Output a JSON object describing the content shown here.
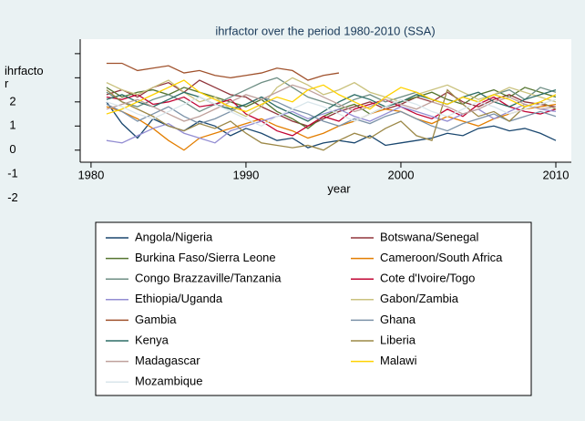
{
  "chart_data": {
    "type": "line",
    "title": "ihrfactor over the period 1980-2010 (SSA)",
    "xlabel": "year",
    "ylabel": "ihrfactor",
    "x": [
      1981,
      1982,
      1983,
      1984,
      1985,
      1986,
      1987,
      1988,
      1989,
      1990,
      1991,
      1992,
      1993,
      1994,
      1995,
      1996,
      1997,
      1998,
      1999,
      2000,
      2001,
      2002,
      2003,
      2004,
      2005,
      2006,
      2007,
      2008,
      2009,
      2010
    ],
    "xlim": [
      1979.3,
      2011
    ],
    "xticks": [
      1980,
      1990,
      2000,
      2010
    ],
    "ylim": [
      -0.5,
      4.6
    ],
    "yticks": [
      {
        "value": -2,
        "label": "-2"
      },
      {
        "value": -1,
        "label": "-1"
      },
      0,
      1,
      2,
      {
        "value": 3,
        "label": null
      },
      {
        "value": 4,
        "label": null
      }
    ],
    "series": [
      {
        "name": "Angola/Nigeria",
        "color": "#1a476f",
        "values": [
          2.0,
          1.1,
          0.5,
          1.3,
          1.0,
          0.8,
          1.2,
          1.0,
          0.6,
          0.9,
          0.7,
          0.4,
          0.5,
          0.1,
          0.3,
          0.4,
          0.3,
          0.6,
          0.2,
          0.3,
          0.4,
          0.5,
          0.7,
          0.6,
          0.9,
          1.0,
          0.8,
          0.9,
          0.7,
          0.4
        ]
      },
      {
        "name": "Botswana/Senegal",
        "color": "#90353b",
        "values": [
          2.3,
          2.5,
          2.2,
          2.6,
          2.8,
          2.4,
          2.9,
          2.6,
          2.3,
          2.2,
          1.8,
          1.5,
          1.2,
          1.0,
          1.3,
          1.6,
          1.8,
          2.0,
          1.7,
          1.9,
          2.2,
          2.0,
          2.4,
          2.0,
          1.8,
          2.1,
          2.3,
          2.0,
          1.9,
          1.8
        ]
      },
      {
        "name": "Burkina Faso/Sierra Leone",
        "color": "#55752f",
        "values": [
          2.6,
          2.2,
          2.4,
          2.5,
          2.3,
          2.6,
          2.4,
          2.2,
          2.0,
          1.8,
          2.1,
          1.6,
          1.3,
          0.9,
          1.4,
          1.7,
          1.9,
          1.5,
          1.8,
          2.0,
          2.2,
          2.4,
          2.1,
          1.9,
          2.3,
          2.5,
          2.2,
          2.6,
          2.4,
          2.2
        ]
      },
      {
        "name": "Cameroon/South Africa",
        "color": "#e37e00",
        "values": [
          1.8,
          1.6,
          1.3,
          0.9,
          0.4,
          0.0,
          0.5,
          0.7,
          0.9,
          1.1,
          1.3,
          1.0,
          0.8,
          0.5,
          0.7,
          1.0,
          1.2,
          1.5,
          1.7,
          1.6,
          1.3,
          1.1,
          1.4,
          1.2,
          1.0,
          1.3,
          1.5,
          1.7,
          1.8,
          1.9
        ]
      },
      {
        "name": "Congo Brazzaville/Tanzania",
        "color": "#6e8e84",
        "values": [
          2.4,
          2.0,
          1.8,
          2.1,
          2.3,
          2.0,
          1.6,
          1.9,
          2.2,
          2.5,
          2.8,
          3.0,
          2.6,
          2.2,
          2.0,
          1.8,
          2.1,
          2.3,
          2.0,
          2.2,
          2.4,
          2.1,
          1.9,
          2.2,
          2.0,
          2.3,
          2.5,
          2.1,
          2.6,
          2.4
        ]
      },
      {
        "name": "Cote d'Ivoire/Togo",
        "color": "#c10534",
        "values": [
          2.2,
          2.1,
          2.3,
          1.9,
          2.0,
          2.2,
          1.8,
          1.9,
          2.1,
          1.5,
          1.2,
          0.8,
          0.6,
          1.0,
          1.4,
          1.2,
          1.7,
          1.9,
          2.1,
          1.8,
          1.5,
          1.3,
          1.7,
          1.4,
          1.9,
          2.2,
          1.8,
          1.6,
          1.5,
          1.7
        ]
      },
      {
        "name": "Ethiopia/Uganda",
        "color": "#938dd2",
        "values": [
          0.4,
          0.3,
          0.6,
          0.9,
          1.1,
          0.7,
          0.5,
          0.3,
          0.8,
          1.0,
          1.2,
          1.4,
          1.6,
          1.3,
          1.5,
          1.7,
          1.4,
          1.2,
          1.5,
          1.8,
          1.6,
          1.4,
          1.2,
          1.5,
          1.7,
          1.3,
          1.6,
          1.9,
          1.7,
          1.6
        ]
      },
      {
        "name": "Gabon/Zambia",
        "color": "#cac27e",
        "values": [
          2.8,
          2.5,
          2.3,
          2.6,
          2.9,
          2.4,
          2.0,
          2.2,
          1.7,
          1.4,
          1.8,
          2.6,
          3.0,
          2.7,
          2.3,
          2.5,
          2.8,
          2.4,
          2.2,
          2.0,
          2.3,
          2.5,
          2.7,
          2.4,
          2.1,
          2.3,
          2.6,
          2.4,
          2.2,
          2.0
        ]
      },
      {
        "name": "Gambia",
        "color": "#a0522d",
        "values": [
          3.6,
          3.6,
          3.3,
          3.4,
          3.5,
          3.2,
          3.3,
          3.1,
          3.0,
          3.1,
          3.2,
          3.4,
          3.3,
          2.9,
          3.1,
          3.2,
          null,
          null,
          null,
          null,
          null,
          null,
          null,
          null,
          null,
          null,
          null,
          null,
          null,
          null
        ]
      },
      {
        "name": "Ghana",
        "color": "#7b92a8",
        "values": [
          1.9,
          1.6,
          1.2,
          1.5,
          1.8,
          1.4,
          1.1,
          1.3,
          1.6,
          1.9,
          2.2,
          2.0,
          1.7,
          1.5,
          1.2,
          1.0,
          1.3,
          1.1,
          1.4,
          1.6,
          1.3,
          1.0,
          0.8,
          1.1,
          1.3,
          1.5,
          1.2,
          1.4,
          1.6,
          1.4
        ]
      },
      {
        "name": "Kenya",
        "color": "#2d6d66",
        "values": [
          2.1,
          2.3,
          2.0,
          1.8,
          2.1,
          2.4,
          2.2,
          1.9,
          1.7,
          1.9,
          2.2,
          1.8,
          1.5,
          1.2,
          1.6,
          2.0,
          2.3,
          2.1,
          1.8,
          2.0,
          2.3,
          2.1,
          1.9,
          2.2,
          2.4,
          2.0,
          1.8,
          2.1,
          2.3,
          2.5
        ]
      },
      {
        "name": "Liberia",
        "color": "#9c8847",
        "values": [
          2.5,
          2.0,
          1.7,
          1.4,
          1.0,
          0.8,
          1.1,
          0.9,
          1.2,
          0.7,
          0.3,
          0.2,
          0.1,
          0.2,
          0.0,
          0.4,
          0.7,
          0.5,
          0.9,
          1.2,
          0.6,
          0.4,
          2.5,
          1.9,
          1.4,
          1.6,
          1.2,
          1.8,
          2.0,
          1.7
        ]
      },
      {
        "name": "Madagascar",
        "color": "#bfa19c",
        "values": [
          1.7,
          1.9,
          2.1,
          1.8,
          1.5,
          1.2,
          1.4,
          1.7,
          2.0,
          2.3,
          2.1,
          2.4,
          2.7,
          2.5,
          2.2,
          1.9,
          1.6,
          1.8,
          2.1,
          1.9,
          1.7,
          2.0,
          1.8,
          1.5,
          1.7,
          2.0,
          2.2,
          1.9,
          1.7,
          1.8
        ]
      },
      {
        "name": "Malawi",
        "color": "#ffd200",
        "values": [
          1.5,
          1.7,
          2.0,
          2.3,
          2.6,
          2.9,
          2.4,
          2.1,
          1.8,
          1.6,
          1.9,
          2.2,
          2.0,
          2.5,
          2.7,
          2.3,
          2.0,
          1.7,
          2.2,
          2.6,
          2.4,
          2.1,
          1.9,
          2.2,
          2.0,
          2.3,
          2.1,
          1.8,
          2.0,
          2.3
        ]
      },
      {
        "name": "Mozambique",
        "color": "#d9e6eb",
        "values": [
          2.0,
          1.8,
          1.5,
          1.3,
          1.6,
          1.9,
          2.2,
          1.9,
          1.6,
          1.3,
          1.0,
          1.4,
          1.7,
          2.0,
          1.8,
          1.5,
          1.2,
          1.5,
          1.8,
          2.1,
          1.9,
          1.6,
          1.4,
          1.7,
          2.0,
          1.8,
          1.5,
          1.7,
          1.9,
          2.1
        ]
      }
    ]
  }
}
